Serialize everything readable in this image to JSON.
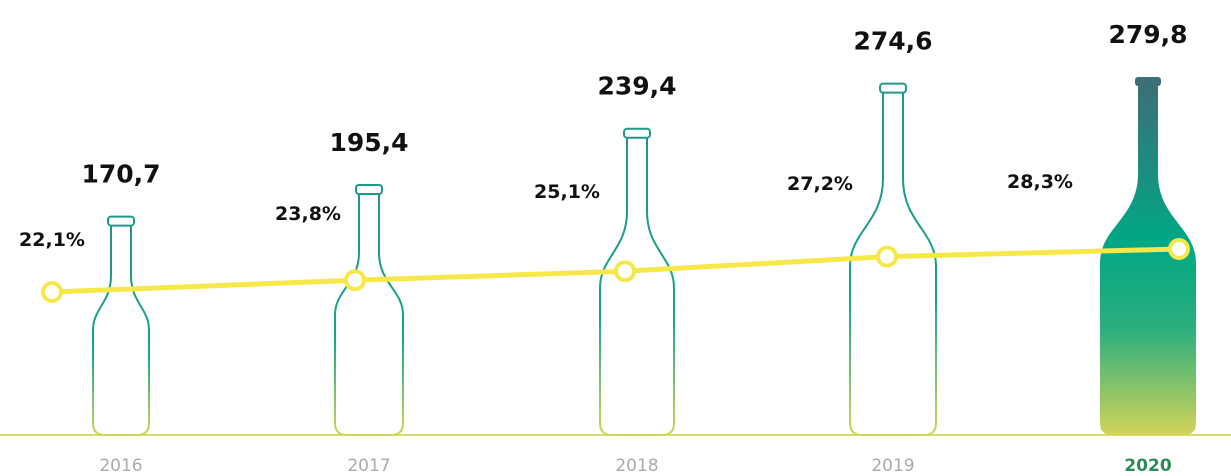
{
  "chart_data": {
    "type": "bar",
    "categories": [
      "2016",
      "2017",
      "2018",
      "2019",
      "2020"
    ],
    "values": [
      170.7,
      195.4,
      239.4,
      274.6,
      279.8
    ],
    "value_labels": [
      "170,7",
      "195,4",
      "239,4",
      "274,6",
      "279,8"
    ],
    "color": "#1e9a8a",
    "line": {
      "values": [
        22.1,
        23.8,
        25.1,
        27.2,
        28.3
      ],
      "value_labels": [
        "22,1%",
        "23,8%",
        "25,1%",
        "27,2%",
        "28,3%"
      ],
      "color": "#f7e84a"
    }
  }
}
